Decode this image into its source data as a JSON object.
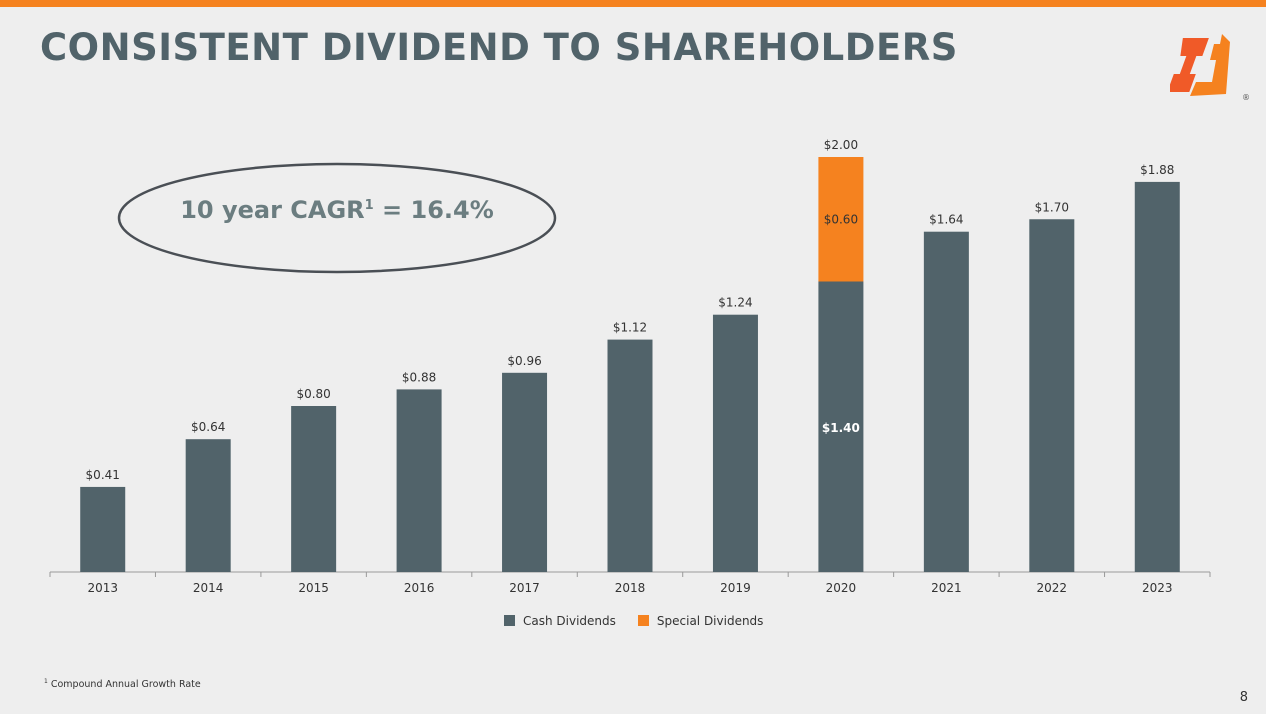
{
  "title": "CONSISTENT DIVIDEND TO SHAREHOLDERS",
  "callout": {
    "text": "10 year CAGR",
    "sup": "1",
    "value": " = 16.4%"
  },
  "footnote": {
    "sup": "1",
    "text": "Compound Annual Growth Rate"
  },
  "page_number": "8",
  "colors": {
    "cash": "#51636a",
    "special": "#f5821f",
    "accent": "#f5821f"
  },
  "chart_data": {
    "type": "bar",
    "stacked": true,
    "categories": [
      "2013",
      "2014",
      "2015",
      "2016",
      "2017",
      "2018",
      "2019",
      "2020",
      "2021",
      "2022",
      "2023"
    ],
    "series": [
      {
        "name": "Cash Dividends",
        "values": [
          0.41,
          0.64,
          0.8,
          0.88,
          0.96,
          1.12,
          1.24,
          1.4,
          1.64,
          1.7,
          1.88
        ]
      },
      {
        "name": "Special Dividends",
        "values": [
          0,
          0,
          0,
          0,
          0,
          0,
          0,
          0.6,
          0,
          0,
          0
        ]
      }
    ],
    "total_labels": [
      "$0.41",
      "$0.64",
      "$0.80",
      "$0.88",
      "$0.96",
      "$1.12",
      "$1.24",
      "$2.00",
      "$1.64",
      "$1.70",
      "$1.88"
    ],
    "segment_labels": {
      "cash_2020": "$1.40",
      "special_2020": "$0.60"
    },
    "ylim": [
      0,
      2.0
    ],
    "legend": "bottom",
    "grid": false
  }
}
